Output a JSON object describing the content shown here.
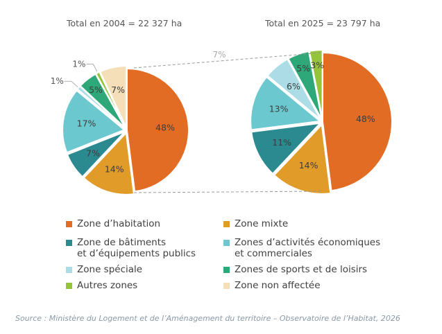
{
  "chart_data": [
    {
      "type": "pie",
      "title": "Total en 2004 = 22 327 ha",
      "categories": [
        "Zone d’habitation",
        "Zone mixte",
        "Zone de bâtiments et d’équipements publics",
        "Zones d’activités économiques et commerciales",
        "Zone spéciale",
        "Zones de sports et de loisirs",
        "Autres zones",
        "Zone non affectée"
      ],
      "values": [
        48,
        14,
        7,
        17,
        1,
        5,
        1,
        7
      ],
      "labels": [
        "48%",
        "14%",
        "7%",
        "17%",
        "1%",
        "5%",
        "1%",
        "7%"
      ]
    },
    {
      "type": "pie",
      "title": "Total en 2025 = 23 797 ha",
      "categories": [
        "Zone d’habitation",
        "Zone mixte",
        "Zone de bâtiments et d’équipements publics",
        "Zones d’activités économiques et commerciales",
        "Zone spéciale",
        "Zones de sports et de loisirs",
        "Autres zones"
      ],
      "values": [
        48,
        14,
        11,
        13,
        6,
        5,
        3
      ],
      "labels": [
        "48%",
        "14%",
        "11%",
        "13%",
        "6%",
        "5%",
        "3%"
      ]
    }
  ],
  "connector_label": "7%",
  "colors": {
    "Zone d’habitation": "#e36c25",
    "Zone mixte": "#e09b28",
    "Zone de bâtiments et d’équipements publics": "#2a8a8f",
    "Zones d’activités économiques et commerciales": "#6cc8cf",
    "Zone spéciale": "#acdde6",
    "Zones de sports et de loisirs": "#2ea878",
    "Autres zones": "#95c43a",
    "Zone non affectée": "#f5dfb8"
  },
  "legend": [
    {
      "label": "Zone d’habitation",
      "color": "#e36c25"
    },
    {
      "label": "Zone mixte",
      "color": "#e09b28"
    },
    {
      "label": "Zone de bâtiments\net d’équipements publics",
      "color": "#2a8a8f"
    },
    {
      "label": "Zones d’activités économiques\net commerciales",
      "color": "#6cc8cf"
    },
    {
      "label": "Zone spéciale",
      "color": "#acdde6"
    },
    {
      "label": "Zones de sports et de loisirs",
      "color": "#2ea878"
    },
    {
      "label": "Autres zones",
      "color": "#95c43a"
    },
    {
      "label": "Zone non affectée",
      "color": "#f5dfb8"
    }
  ],
  "source": "Source : Ministère du Logement et de l’Aménagement du territoire – Observatoire de l’Habitat, 2026"
}
